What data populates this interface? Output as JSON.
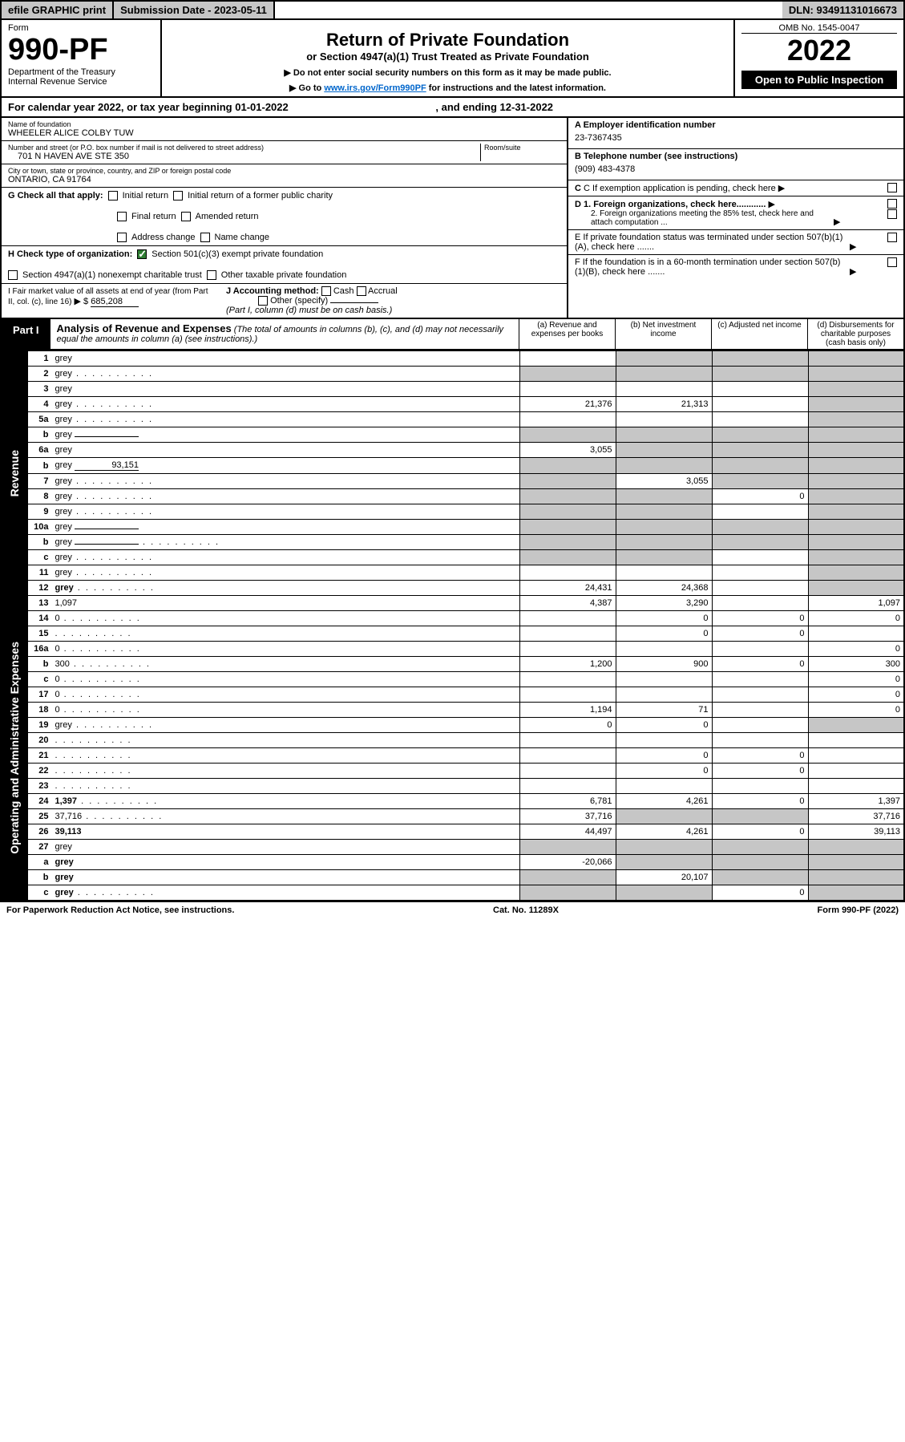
{
  "header": {
    "efile": "efile GRAPHIC print",
    "submission_label": "Submission Date - 2023-05-11",
    "dln": "DLN: 93491131016673",
    "omb": "OMB No. 1545-0047"
  },
  "form": {
    "label": "Form",
    "number": "990-PF",
    "dept1": "Department of the Treasury",
    "dept2": "Internal Revenue Service",
    "title": "Return of Private Foundation",
    "subtitle": "or Section 4947(a)(1) Trust Treated as Private Foundation",
    "instr1": "Do not enter social security numbers on this form as it may be made public.",
    "instr2_pre": "Go to ",
    "instr2_link": "www.irs.gov/Form990PF",
    "instr2_post": " for instructions and the latest information.",
    "year": "2022",
    "open": "Open to Public Inspection"
  },
  "calyear": {
    "text_pre": "For calendar year 2022, or tax year beginning ",
    "begin": "01-01-2022",
    "text_mid": " , and ending ",
    "end": "12-31-2022"
  },
  "entity": {
    "name_label": "Name of foundation",
    "name": "WHEELER ALICE COLBY TUW",
    "addr_label": "Number and street (or P.O. box number if mail is not delivered to street address)",
    "addr": "701 N HAVEN AVE STE 350",
    "room_label": "Room/suite",
    "city_label": "City or town, state or province, country, and ZIP or foreign postal code",
    "city": "ONTARIO, CA  91764",
    "ein_label": "A Employer identification number",
    "ein": "23-7367435",
    "phone_label": "B Telephone number (see instructions)",
    "phone": "(909) 483-4378",
    "c_label": "C If exemption application is pending, check here",
    "d1": "D 1. Foreign organizations, check here............",
    "d2": "2. Foreign organizations meeting the 85% test, check here and attach computation ...",
    "e_label": "E  If private foundation status was terminated under section 507(b)(1)(A), check here .......",
    "f_label": "F  If the foundation is in a 60-month termination under section 507(b)(1)(B), check here .......",
    "g_label": "G Check all that apply:",
    "g_opts": [
      "Initial return",
      "Initial return of a former public charity",
      "Final return",
      "Amended return",
      "Address change",
      "Name change"
    ],
    "h_label": "H Check type of organization:",
    "h1": "Section 501(c)(3) exempt private foundation",
    "h2": "Section 4947(a)(1) nonexempt charitable trust",
    "h3": "Other taxable private foundation",
    "i_label": "I Fair market value of all assets at end of year (from Part II, col. (c), line 16)",
    "i_val": "685,208",
    "j_label": "J Accounting method:",
    "j_cash": "Cash",
    "j_accrual": "Accrual",
    "j_other": "Other (specify)",
    "j_note": "(Part I, column (d) must be on cash basis.)"
  },
  "part1": {
    "tab": "Part I",
    "title": "Analysis of Revenue and Expenses",
    "title_note": " (The total of amounts in columns (b), (c), and (d) may not necessarily equal the amounts in column (a) (see instructions).)",
    "cols": {
      "a": "(a)   Revenue and expenses per books",
      "b": "(b)  Net investment income",
      "c": "(c)  Adjusted net income",
      "d": "(d)  Disbursements for charitable purposes (cash basis only)"
    }
  },
  "revenue_label": "Revenue",
  "expenses_label": "Operating and Administrative Expenses",
  "rows": [
    {
      "n": "1",
      "d": "grey",
      "a": "",
      "b": "grey",
      "c": "grey"
    },
    {
      "n": "2",
      "d": "grey",
      "dots": true,
      "a": "grey",
      "b": "grey",
      "c": "grey"
    },
    {
      "n": "3",
      "d": "grey",
      "a": "",
      "b": "",
      "c": ""
    },
    {
      "n": "4",
      "d": "grey",
      "dots": true,
      "a": "21,376",
      "b": "21,313",
      "c": ""
    },
    {
      "n": "5a",
      "d": "grey",
      "dots": true,
      "a": "",
      "b": "",
      "c": ""
    },
    {
      "n": "b",
      "d": "grey",
      "inline": "",
      "a": "grey",
      "b": "grey",
      "c": "grey"
    },
    {
      "n": "6a",
      "d": "grey",
      "a": "3,055",
      "b": "grey",
      "c": "grey"
    },
    {
      "n": "b",
      "d": "grey",
      "inline": "93,151",
      "a": "grey",
      "b": "grey",
      "c": "grey"
    },
    {
      "n": "7",
      "d": "grey",
      "dots": true,
      "a": "grey",
      "b": "3,055",
      "c": "grey"
    },
    {
      "n": "8",
      "d": "grey",
      "dots": true,
      "a": "grey",
      "b": "grey",
      "c": "0"
    },
    {
      "n": "9",
      "d": "grey",
      "dots": true,
      "a": "grey",
      "b": "grey",
      "c": ""
    },
    {
      "n": "10a",
      "d": "grey",
      "inline": "",
      "a": "grey",
      "b": "grey",
      "c": "grey"
    },
    {
      "n": "b",
      "d": "grey",
      "dots": true,
      "inline": "",
      "a": "grey",
      "b": "grey",
      "c": "grey"
    },
    {
      "n": "c",
      "d": "grey",
      "dots": true,
      "a": "grey",
      "b": "grey",
      "c": ""
    },
    {
      "n": "11",
      "d": "grey",
      "dots": true,
      "a": "",
      "b": "",
      "c": ""
    },
    {
      "n": "12",
      "d": "grey",
      "bold": true,
      "dots": true,
      "a": "24,431",
      "b": "24,368",
      "c": ""
    },
    {
      "n": "13",
      "d": "1,097",
      "a": "4,387",
      "b": "3,290",
      "c": ""
    },
    {
      "n": "14",
      "d": "0",
      "dots": true,
      "a": "",
      "b": "0",
      "c": "0"
    },
    {
      "n": "15",
      "d": "",
      "dots": true,
      "a": "",
      "b": "0",
      "c": "0"
    },
    {
      "n": "16a",
      "d": "0",
      "dots": true,
      "a": "",
      "b": "",
      "c": ""
    },
    {
      "n": "b",
      "d": "300",
      "dots": true,
      "a": "1,200",
      "b": "900",
      "c": "0"
    },
    {
      "n": "c",
      "d": "0",
      "dots": true,
      "a": "",
      "b": "",
      "c": ""
    },
    {
      "n": "17",
      "d": "0",
      "dots": true,
      "a": "",
      "b": "",
      "c": ""
    },
    {
      "n": "18",
      "d": "0",
      "dots": true,
      "a": "1,194",
      "b": "71",
      "c": ""
    },
    {
      "n": "19",
      "d": "grey",
      "dots": true,
      "a": "0",
      "b": "0",
      "c": ""
    },
    {
      "n": "20",
      "d": "",
      "dots": true,
      "a": "",
      "b": "",
      "c": ""
    },
    {
      "n": "21",
      "d": "",
      "dots": true,
      "a": "",
      "b": "0",
      "c": "0"
    },
    {
      "n": "22",
      "d": "",
      "dots": true,
      "a": "",
      "b": "0",
      "c": "0"
    },
    {
      "n": "23",
      "d": "",
      "dots": true,
      "a": "",
      "b": "",
      "c": ""
    },
    {
      "n": "24",
      "d": "1,397",
      "bold": true,
      "dots": true,
      "a": "6,781",
      "b": "4,261",
      "c": "0"
    },
    {
      "n": "25",
      "d": "37,716",
      "dots": true,
      "a": "37,716",
      "b": "grey",
      "c": "grey"
    },
    {
      "n": "26",
      "d": "39,113",
      "bold": true,
      "a": "44,497",
      "b": "4,261",
      "c": "0"
    },
    {
      "n": "27",
      "d": "grey",
      "a": "grey",
      "b": "grey",
      "c": "grey"
    },
    {
      "n": "a",
      "d": "grey",
      "bold": true,
      "a": "-20,066",
      "b": "grey",
      "c": "grey"
    },
    {
      "n": "b",
      "d": "grey",
      "bold": true,
      "a": "grey",
      "b": "20,107",
      "c": "grey"
    },
    {
      "n": "c",
      "d": "grey",
      "bold": true,
      "dots": true,
      "a": "grey",
      "b": "grey",
      "c": "0"
    }
  ],
  "footer": {
    "left": "For Paperwork Reduction Act Notice, see instructions.",
    "mid": "Cat. No. 11289X",
    "right": "Form 990-PF (2022)"
  }
}
